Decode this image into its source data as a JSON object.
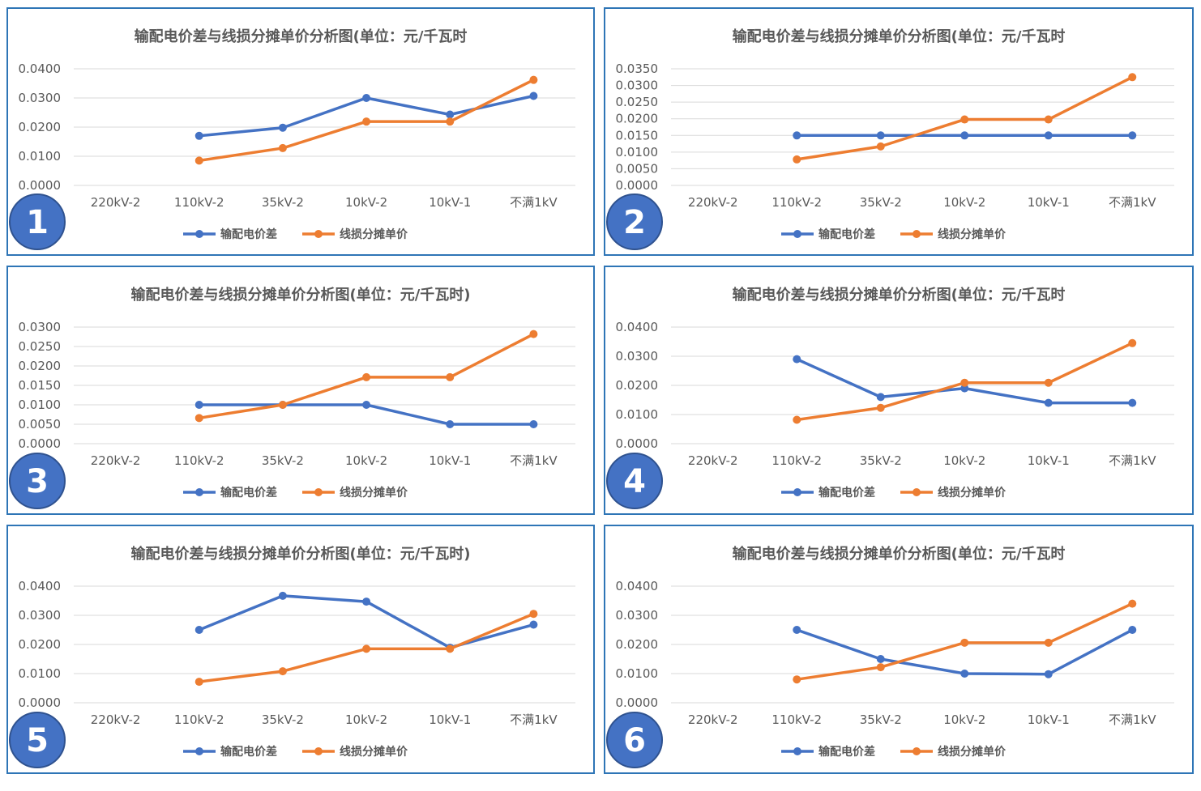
{
  "colors": {
    "border": "#2e75b6",
    "series_blue": "#4472c4",
    "series_orange": "#ed7d31",
    "badge_fill": "#4472c4",
    "grid": "#d9d9d9",
    "text": "#595959"
  },
  "chart_data": [
    {
      "type": "line",
      "panel_number": "1",
      "title": "输配电价差与线损分摊单价分析图(单位：元/千瓦时",
      "categories": [
        "220kV-2",
        "110kV-2",
        "35kV-2",
        "10kV-2",
        "10kV-1",
        "不满1kV"
      ],
      "y_ticks": [
        "0.0000",
        "0.0100",
        "0.0200",
        "0.0300",
        "0.0400"
      ],
      "ylim": [
        0,
        0.04
      ],
      "series": [
        {
          "name": "输配电价差",
          "color": "#4472c4",
          "values": [
            null,
            0.017,
            0.0198,
            0.03,
            0.0243,
            0.0307
          ]
        },
        {
          "name": "线损分摊单价",
          "color": "#ed7d31",
          "values": [
            null,
            0.0085,
            0.0128,
            0.0219,
            0.0219,
            0.0362
          ]
        }
      ],
      "legend": "bottom"
    },
    {
      "type": "line",
      "panel_number": "2",
      "title": "输配电价差与线损分摊单价分析图(单位：元/千瓦时",
      "categories": [
        "220kV-2",
        "110kV-2",
        "35kV-2",
        "10kV-2",
        "10kV-1",
        "不满1kV"
      ],
      "y_ticks": [
        "0.0000",
        "0.0050",
        "0.0100",
        "0.0150",
        "0.0200",
        "0.0250",
        "0.0300",
        "0.0350"
      ],
      "ylim": [
        0,
        0.035
      ],
      "series": [
        {
          "name": "输配电价差",
          "color": "#4472c4",
          "values": [
            null,
            0.015,
            0.015,
            0.015,
            0.015,
            0.015
          ]
        },
        {
          "name": "线损分摊单价",
          "color": "#ed7d31",
          "values": [
            null,
            0.0078,
            0.0117,
            0.0198,
            0.0198,
            0.0325
          ]
        }
      ],
      "legend": "bottom"
    },
    {
      "type": "line",
      "panel_number": "3",
      "title": "输配电价差与线损分摊单价分析图(单位：元/千瓦时)",
      "categories": [
        "220kV-2",
        "110kV-2",
        "35kV-2",
        "10kV-2",
        "10kV-1",
        "不满1kV"
      ],
      "y_ticks": [
        "0.0000",
        "0.0050",
        "0.0100",
        "0.0150",
        "0.0200",
        "0.0250",
        "0.0300"
      ],
      "ylim": [
        0,
        0.03
      ],
      "series": [
        {
          "name": "输配电价差",
          "color": "#4472c4",
          "values": [
            null,
            0.01,
            0.01,
            0.01,
            0.005,
            0.005
          ]
        },
        {
          "name": "线损分摊单价",
          "color": "#ed7d31",
          "values": [
            null,
            0.0066,
            0.01,
            0.0171,
            0.0171,
            0.0282
          ]
        }
      ],
      "legend": "bottom"
    },
    {
      "type": "line",
      "panel_number": "4",
      "title": "输配电价差与线损分摊单价分析图(单位：元/千瓦时",
      "categories": [
        "220kV-2",
        "110kV-2",
        "35kV-2",
        "10kV-2",
        "10kV-1",
        "不满1kV"
      ],
      "y_ticks": [
        "0.0000",
        "0.0100",
        "0.0200",
        "0.0300",
        "0.0400"
      ],
      "ylim": [
        0,
        0.04
      ],
      "series": [
        {
          "name": "输配电价差",
          "color": "#4472c4",
          "values": [
            null,
            0.029,
            0.016,
            0.019,
            0.014,
            0.014
          ]
        },
        {
          "name": "线损分摊单价",
          "color": "#ed7d31",
          "values": [
            null,
            0.0082,
            0.0123,
            0.0209,
            0.0209,
            0.0345
          ]
        }
      ],
      "legend": "bottom"
    },
    {
      "type": "line",
      "panel_number": "5",
      "title": "输配电价差与线损分摊单价分析图(单位：元/千瓦时)",
      "categories": [
        "220kV-2",
        "110kV-2",
        "35kV-2",
        "10kV-2",
        "10kV-1",
        "不满1kV"
      ],
      "y_ticks": [
        "0.0000",
        "0.0100",
        "0.0200",
        "0.0300",
        "0.0400"
      ],
      "ylim": [
        0,
        0.04
      ],
      "series": [
        {
          "name": "输配电价差",
          "color": "#4472c4",
          "values": [
            null,
            0.025,
            0.0367,
            0.0347,
            0.0189,
            0.0268
          ]
        },
        {
          "name": "线损分摊单价",
          "color": "#ed7d31",
          "values": [
            null,
            0.0072,
            0.0108,
            0.0185,
            0.0185,
            0.0305
          ]
        }
      ],
      "legend": "bottom"
    },
    {
      "type": "line",
      "panel_number": "6",
      "title": "输配电价差与线损分摊单价分析图(单位：元/千瓦时",
      "categories": [
        "220kV-2",
        "110kV-2",
        "35kV-2",
        "10kV-2",
        "10kV-1",
        "不满1kV"
      ],
      "y_ticks": [
        "0.0000",
        "0.0100",
        "0.0200",
        "0.0300",
        "0.0400"
      ],
      "ylim": [
        0,
        0.04
      ],
      "series": [
        {
          "name": "输配电价差",
          "color": "#4472c4",
          "values": [
            null,
            0.025,
            0.015,
            0.01,
            0.0098,
            0.025
          ]
        },
        {
          "name": "线损分摊单价",
          "color": "#ed7d31",
          "values": [
            null,
            0.008,
            0.0122,
            0.0206,
            0.0206,
            0.034
          ]
        }
      ],
      "legend": "bottom"
    }
  ]
}
